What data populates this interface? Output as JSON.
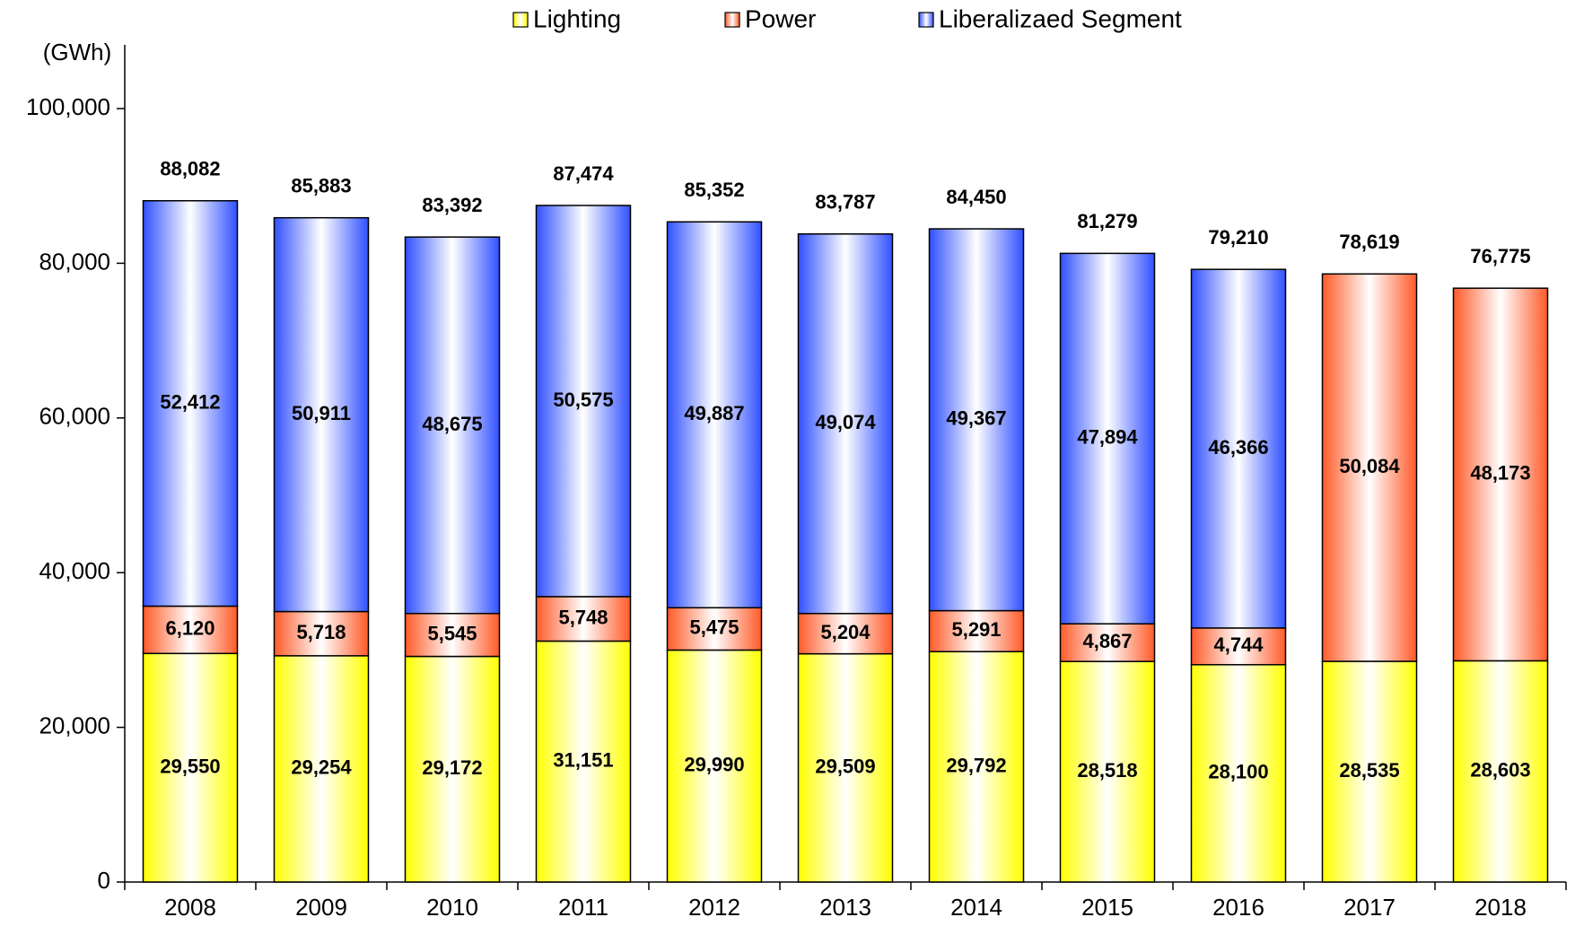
{
  "chart_data": {
    "type": "stacked_bar",
    "y_label": "(GWh)",
    "categories": [
      "2008",
      "2009",
      "2010",
      "2011",
      "2012",
      "2013",
      "2014",
      "2015",
      "2016",
      "2017",
      "2018"
    ],
    "series": [
      {
        "name": "Lighting",
        "color": "#ffff00",
        "values": [
          29550,
          29254,
          29172,
          31151,
          29990,
          29509,
          29792,
          28518,
          28100,
          28535,
          28603
        ],
        "value_labels": [
          "29,550",
          "29,254",
          "29,172",
          "31,151",
          "29,990",
          "29,509",
          "29,792",
          "28,518",
          "28,100",
          "28,535",
          "28,603"
        ]
      },
      {
        "name": "Power",
        "color": "#ff5a28",
        "values": [
          6120,
          5718,
          5545,
          5748,
          5475,
          5204,
          5291,
          4867,
          4744,
          50084,
          48173
        ],
        "value_labels": [
          "6,120",
          "5,718",
          "5,545",
          "5,748",
          "5,475",
          "5,204",
          "5,291",
          "4,867",
          "4,744",
          "50,084",
          "48,173"
        ]
      },
      {
        "name": "Liberalizaed Segment",
        "color": "#3050ff",
        "values": [
          52412,
          50911,
          48675,
          50575,
          49887,
          49074,
          49367,
          47894,
          46366,
          null,
          null
        ],
        "value_labels": [
          "52,412",
          "50,911",
          "48,675",
          "50,575",
          "49,887",
          "49,074",
          "49,367",
          "47,894",
          "46,366",
          null,
          null
        ]
      }
    ],
    "totals": [
      88082,
      85883,
      83392,
      87474,
      85352,
      83787,
      84450,
      81279,
      79210,
      78619,
      76775
    ],
    "total_labels": [
      "88,082",
      "85,883",
      "83,392",
      "87,474",
      "85,352",
      "83,787",
      "84,450",
      "81,279",
      "79,210",
      "78,619",
      "76,775"
    ],
    "ylim": [
      0,
      100000
    ],
    "yticks": [
      0,
      {
        "value": 20000,
        "label": "20,000"
      },
      {
        "value": 40000,
        "label": "40,000"
      },
      {
        "value": 60000,
        "label": "60,000"
      },
      {
        "value": 80000,
        "label": "80,000"
      },
      {
        "value": 100000,
        "label": "100,000"
      }
    ],
    "legend": "top",
    "grid": false
  }
}
